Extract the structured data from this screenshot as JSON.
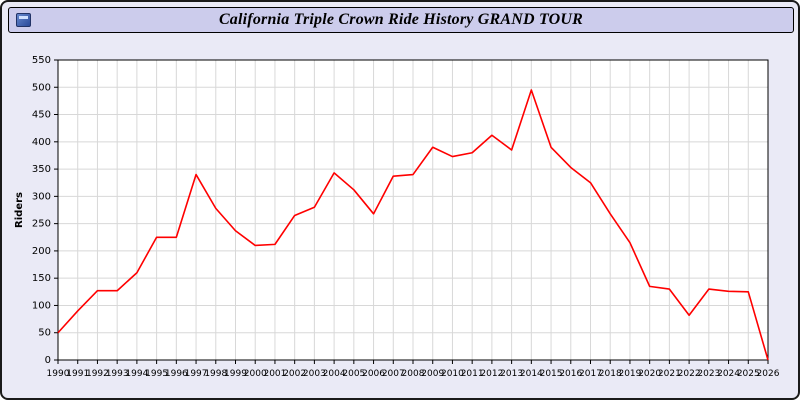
{
  "window": {
    "title": "California Triple Crown Ride History GRAND TOUR"
  },
  "chart_data": {
    "type": "line",
    "title": "California Triple Crown Ride History GRAND TOUR",
    "xlabel": "",
    "ylabel": "Riders",
    "ylim": [
      0,
      550
    ],
    "ytick_step": 50,
    "grid": true,
    "line_color": "#ff0000",
    "plot_bg": "#ffffff",
    "grid_color": "#d8d8d8",
    "x": [
      "1990",
      "1991",
      "1992",
      "1993",
      "1994",
      "1995",
      "1996",
      "1997",
      "1998",
      "1999",
      "2000",
      "2001",
      "2002",
      "2003",
      "2004",
      "2005",
      "2006",
      "2007",
      "2008",
      "2009",
      "2010",
      "2011",
      "2012",
      "2013",
      "2014",
      "2015",
      "2016",
      "2017",
      "2018",
      "2019",
      "2020",
      "2021",
      "2022",
      "2023",
      "2024",
      "2025",
      "2026"
    ],
    "series": [
      {
        "name": "Riders",
        "values": [
          50,
          90,
          127,
          127,
          160,
          225,
          225,
          340,
          278,
          237,
          210,
          212,
          265,
          280,
          343,
          312,
          268,
          337,
          340,
          390,
          373,
          380,
          412,
          385,
          495,
          390,
          353,
          325,
          268,
          215,
          135,
          130,
          82,
          130,
          126,
          125,
          0
        ]
      }
    ]
  }
}
